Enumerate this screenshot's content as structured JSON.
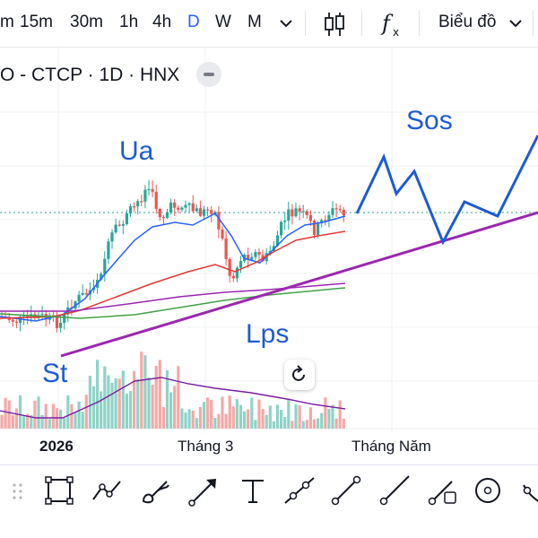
{
  "toolbar_top": {
    "timeframes": [
      "m",
      "15m",
      "30m",
      "1h",
      "4h",
      "D",
      "W",
      "M"
    ],
    "active_timeframe": "D",
    "chart_type_menu_label": "Biểu đồ"
  },
  "symbol": {
    "title": "O - CTCP · 1D · HNX"
  },
  "annotations": {
    "ua": "Ua",
    "sos": "Sos",
    "st": "St",
    "lps": "Lps"
  },
  "x_axis": {
    "labels": [
      "2026",
      "Tháng 3",
      "Tháng Năm"
    ]
  },
  "colors": {
    "accent": "#2962ff",
    "candle_up": "#26a69a",
    "candle_down": "#ef5350",
    "drawing_blue": "#1e5bd3",
    "trendline_purple": "#9c27b0",
    "ma_blue": "#2962ff",
    "ma_red": "#e53935",
    "ma_purple": "#9c27b0",
    "ma_green": "#43a047"
  },
  "drawing_tools": [
    {
      "name": "rectangle-icon"
    },
    {
      "name": "path-icon"
    },
    {
      "name": "brush-icon"
    },
    {
      "name": "arrow-icon"
    },
    {
      "name": "text-icon"
    },
    {
      "name": "extended-line-icon"
    },
    {
      "name": "trend-line-icon"
    },
    {
      "name": "ray-icon"
    },
    {
      "name": "info-line-icon"
    },
    {
      "name": "circle-icon"
    },
    {
      "name": "more-tools-icon"
    }
  ]
}
